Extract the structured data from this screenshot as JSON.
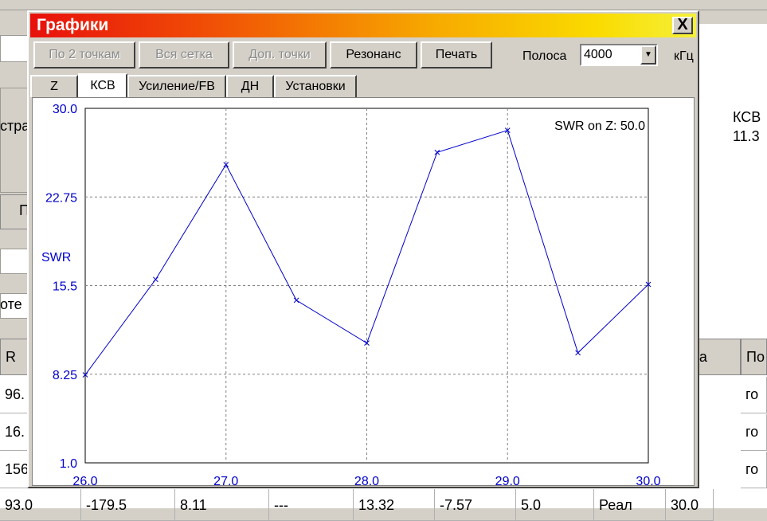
{
  "dialog": {
    "title": "Графики",
    "close_label": "X"
  },
  "toolbar": {
    "by_two_points": "По 2 точкам",
    "whole_grid": "Вся сетка",
    "extra_points": "Доп. точки",
    "resonance": "Резонанс",
    "print": "Печать",
    "band_label": "Полоса",
    "band_value": "4000",
    "band_unit": "кГц"
  },
  "tabs": [
    {
      "label": "Z"
    },
    {
      "label": "КСВ"
    },
    {
      "label": "Усиление/FB"
    },
    {
      "label": "ДН"
    },
    {
      "label": "Установки"
    }
  ],
  "background": {
    "right_label": "КСВ",
    "right_value": "11.3",
    "left_text_1": "стра",
    "left_btn_text": "П",
    "left_text_2": "оте",
    "table_headers": [
      "R",
      "сота",
      "По"
    ],
    "table_rows": [
      [
        "96.",
        "го"
      ],
      [
        "16.",
        "го"
      ],
      [
        "156",
        "го"
      ]
    ],
    "bottom_row": [
      "93.0",
      "-179.5",
      "8.11",
      "---",
      "13.32",
      "-7.57",
      "5.0",
      "Реал",
      "30.0"
    ]
  },
  "colors": {
    "series": "#0000cc",
    "axis_text": "#0000cc",
    "grid": "#808080"
  },
  "chart_data": {
    "type": "line",
    "ylabel": "SWR",
    "annotation": "SWR on Z: 50.0",
    "xlim": [
      26.0,
      30.0
    ],
    "ylim": [
      1.0,
      30.0
    ],
    "x_ticks": [
      "26.0",
      "27.0",
      "28.0",
      "29.0",
      "30.0"
    ],
    "y_ticks": [
      "30.0",
      "22.75",
      "15.5",
      "8.25",
      "1.0"
    ],
    "grid": true,
    "series": [
      {
        "x": [
          26.0,
          26.5,
          27.0,
          27.5,
          28.0,
          28.5,
          29.0,
          29.5,
          30.0
        ],
        "values": [
          8.2,
          16.0,
          25.4,
          14.3,
          10.8,
          26.4,
          28.2,
          10.0,
          15.6
        ]
      }
    ]
  }
}
